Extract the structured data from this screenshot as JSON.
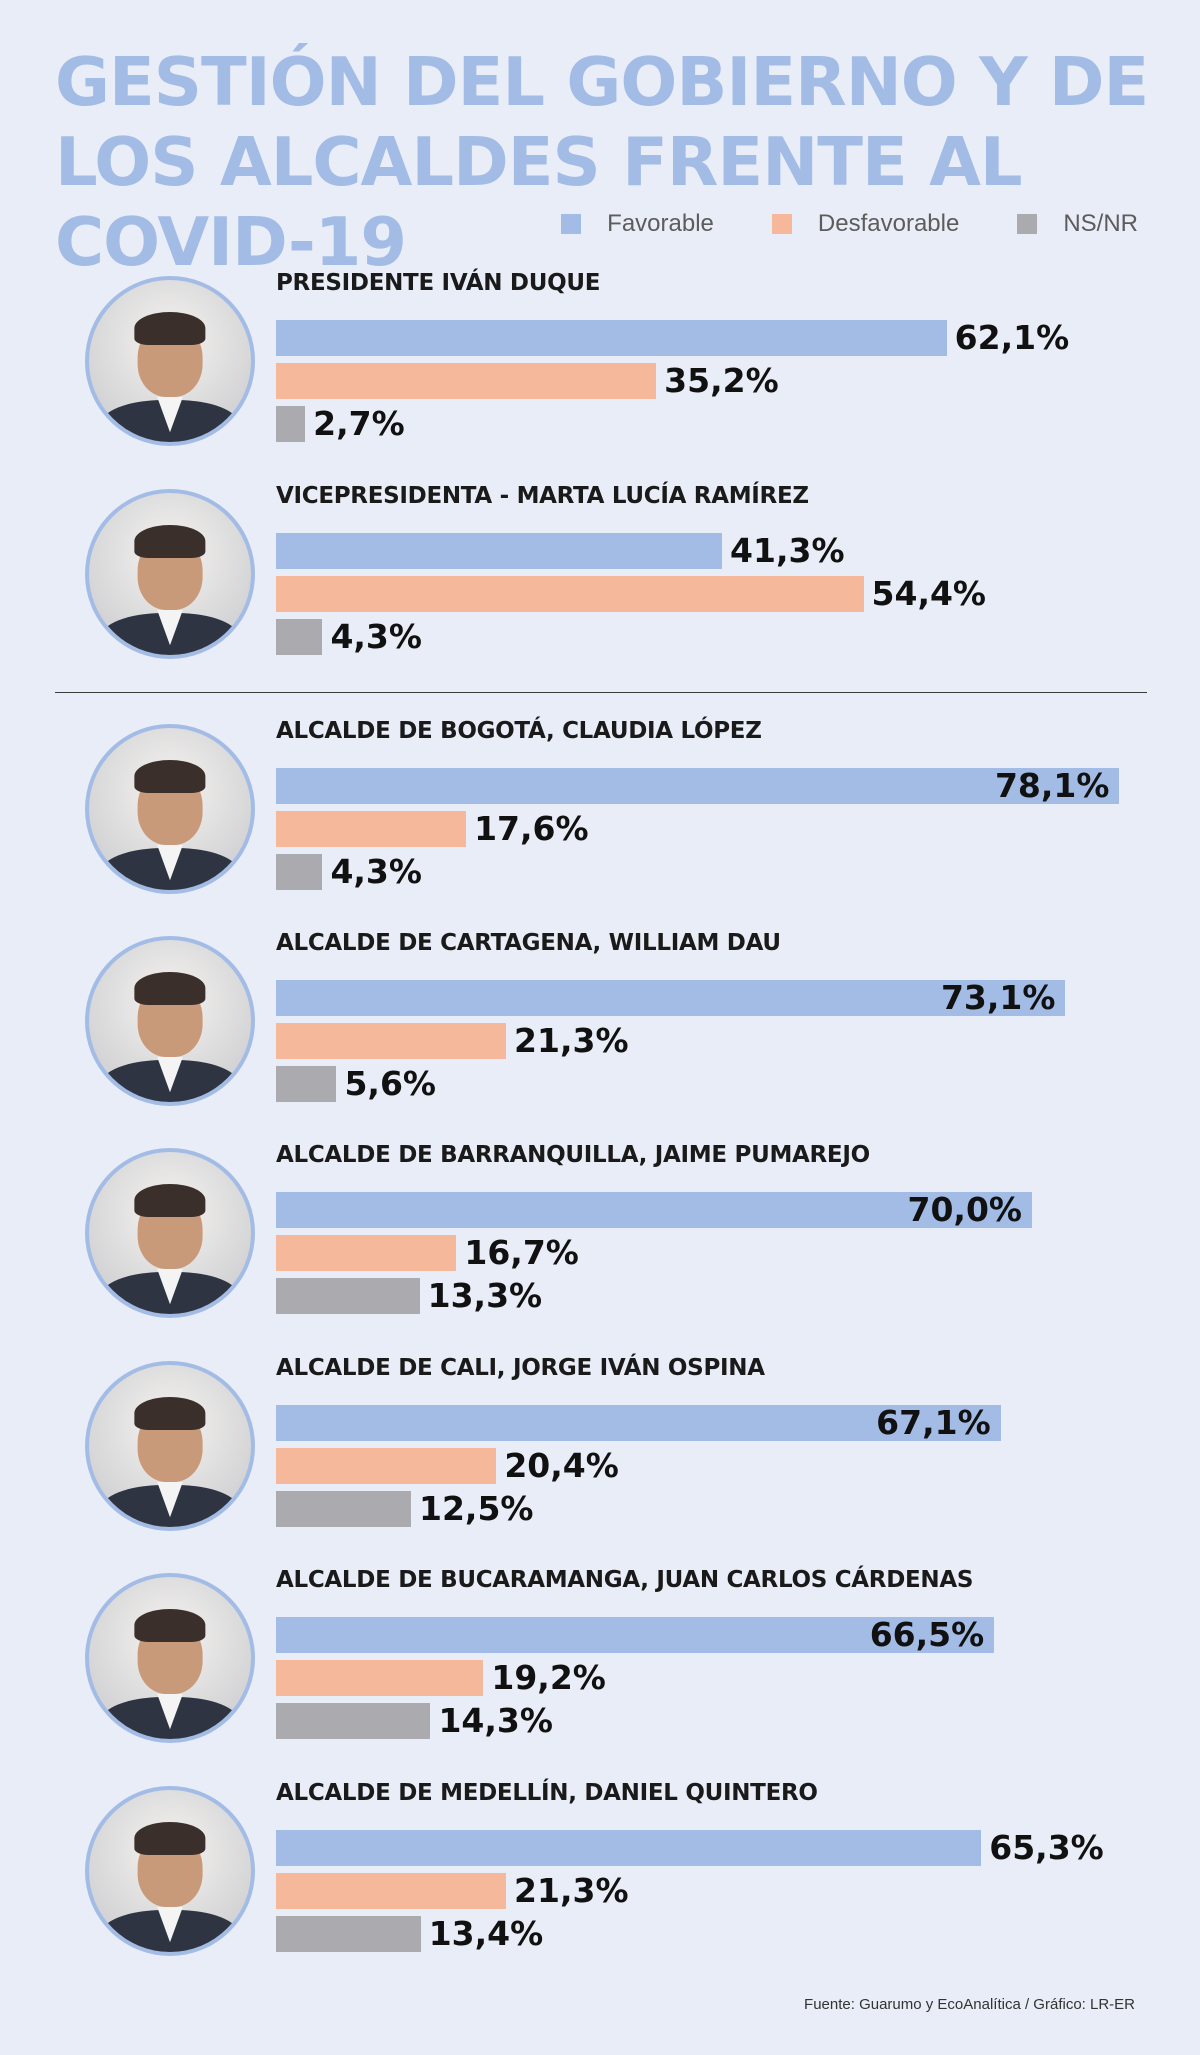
{
  "title": "GESTIÓN DEL GOBIERNO Y DE LOS ALCALDES FRENTE AL COVID-19",
  "colors": {
    "favorable": "#a3bce6",
    "desfavorable": "#f6b89a",
    "nsnr": "#abaaae"
  },
  "legend": [
    "Favorable",
    "Desfavorable",
    "NS/NR"
  ],
  "source": "Fuente: Guarumo y EcoAnalítica / Gráfico: LR-ER",
  "chart_data": {
    "type": "bar",
    "orientation": "horizontal",
    "title": "GESTIÓN DEL GOBIERNO Y DE LOS ALCALDES FRENTE AL COVID-19",
    "unit": "%",
    "xlim": [
      0,
      100
    ],
    "grid": false,
    "legend_position": "top-right",
    "series_names": [
      "Favorable",
      "Desfavorable",
      "NS/NR"
    ],
    "categories": [
      "PRESIDENTE IVÁN DUQUE",
      "VICEPRESIDENTA - MARTA LUCÍA RAMÍREZ",
      "ALCALDE DE BOGOTÁ, CLAUDIA LÓPEZ",
      "ALCALDE DE CARTAGENA, WILLIAM DAU",
      "ALCALDE DE BARRANQUILLA, JAIME PUMAREJO",
      "ALCALDE DE CALI, JORGE IVÁN OSPINA",
      "ALCALDE DE BUCARAMANGA, JUAN CARLOS CÁRDENAS",
      "ALCALDE DE MEDELLÍN, DANIEL QUINTERO"
    ],
    "series": [
      {
        "name": "Favorable",
        "values": [
          62.1,
          41.3,
          78.1,
          73.1,
          70.0,
          67.1,
          66.5,
          65.3
        ]
      },
      {
        "name": "Desfavorable",
        "values": [
          35.2,
          54.4,
          17.6,
          21.3,
          16.7,
          20.4,
          19.2,
          21.3
        ]
      },
      {
        "name": "NS/NR",
        "values": [
          2.7,
          4.3,
          4.3,
          5.6,
          13.3,
          12.5,
          14.3,
          13.4
        ]
      }
    ],
    "labels": [
      [
        "62,1%",
        "35,2%",
        "2,7%"
      ],
      [
        "41,3%",
        "54,4%",
        "4,3%"
      ],
      [
        "78,1%",
        "17,6%",
        "4,3%"
      ],
      [
        "73,1%",
        "21,3%",
        "5,6%"
      ],
      [
        "70,0%",
        "16,7%",
        "13,3%"
      ],
      [
        "67,1%",
        "20,4%",
        "12,5%"
      ],
      [
        "66,5%",
        "19,2%",
        "14,3%"
      ],
      [
        "65,3%",
        "21,3%",
        "13,4%"
      ]
    ]
  }
}
